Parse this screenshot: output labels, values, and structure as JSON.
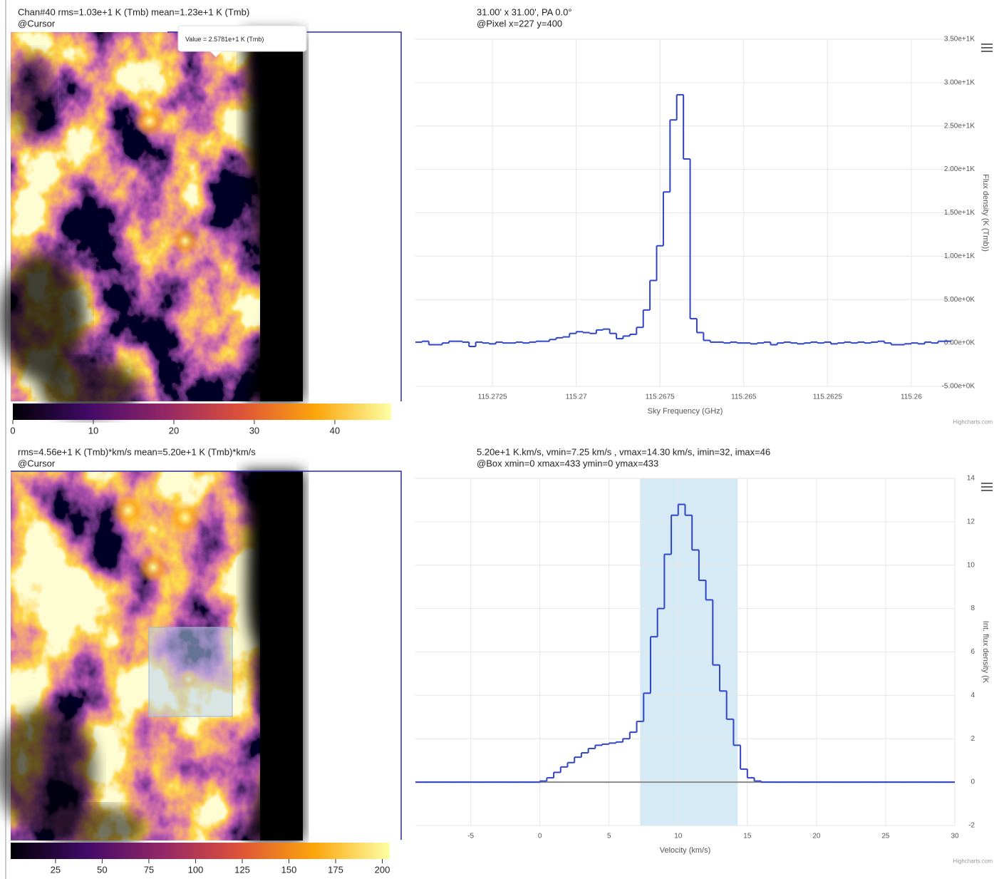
{
  "images": [
    {
      "caption": "Chan#40 rms=1.03e+1 K (Tmb) mean=1.23e+1 K (Tmb)",
      "subcaption": "@Cursor",
      "tooltip": "Value = 2.5781e+1 K (Tmb)",
      "colorbar": {
        "clim": [
          0,
          47
        ],
        "ticks": [
          0,
          10,
          20,
          30,
          40
        ]
      }
    },
    {
      "caption": "rms=4.56e+1 K (Tmb)*km/s mean=5.20e+1 K (Tmb)*km/s",
      "subcaption": "@Cursor",
      "colorbar": {
        "clim": [
          1,
          204
        ],
        "ticks": [
          25,
          50,
          75,
          100,
          125,
          150,
          175,
          200
        ]
      }
    }
  ],
  "chart_data": [
    {
      "type": "line",
      "step": true,
      "title": "31.00' x 31.00', PA 0.0°",
      "subtitle": "@Pixel x=227 y=400",
      "x_label": "Sky Frequency (GHz)",
      "y_label": "Flux density (K (Tmb))",
      "credits": "Highcharts.com",
      "grid": true,
      "y_axis_side": "right",
      "xlim": [
        115.2748,
        115.2587
      ],
      "xticks": [
        115.2725,
        115.27,
        115.2675,
        115.265,
        115.2625,
        115.26
      ],
      "ylim": [
        -5,
        35
      ],
      "yticks": [
        {
          "value": 35,
          "label": "3.50e+1K"
        },
        {
          "value": 30,
          "label": "3.00e+1K"
        },
        {
          "value": 25,
          "label": "2.50e+1K"
        },
        {
          "value": 20,
          "label": "2.00e+1K"
        },
        {
          "value": 15,
          "label": "1.50e+1K"
        },
        {
          "value": 10,
          "label": "1.00e+1K"
        },
        {
          "value": 5,
          "label": "5.00e+0K"
        },
        {
          "value": 0,
          "label": "0.00e+0K"
        },
        {
          "value": -5,
          "label": "-5.00e+0K"
        }
      ],
      "x": [
        115.2747,
        115.2745,
        115.2743,
        115.2741,
        115.2739,
        115.2737,
        115.2735,
        115.2733,
        115.2731,
        115.2729,
        115.2727,
        115.2725,
        115.2723,
        115.2721,
        115.2719,
        115.2717,
        115.2715,
        115.2713,
        115.2711,
        115.2709,
        115.2707,
        115.2705,
        115.2703,
        115.2701,
        115.2699,
        115.2697,
        115.2695,
        115.2693,
        115.2691,
        115.2689,
        115.2687,
        115.2685,
        115.2683,
        115.2681,
        115.2679,
        115.2677,
        115.2675,
        115.2673,
        115.2671,
        115.2669,
        115.2667,
        115.2665,
        115.2663,
        115.2661,
        115.2659,
        115.2657,
        115.2655,
        115.2653,
        115.2651,
        115.2649,
        115.2647,
        115.2645,
        115.2643,
        115.2641,
        115.2639,
        115.2637,
        115.2635,
        115.2633,
        115.2631,
        115.2629,
        115.2627,
        115.2625,
        115.2623,
        115.2621,
        115.2619,
        115.2617,
        115.2615,
        115.2613,
        115.2611,
        115.2609,
        115.2607,
        115.2605,
        115.2603,
        115.2601,
        115.2599,
        115.2597,
        115.2595,
        115.2593,
        115.2591,
        115.2589
      ],
      "series": [
        {
          "color": "#2f45c6",
          "values": [
            0.1,
            0.2,
            -0.2,
            -0.2,
            0.0,
            0.2,
            0.2,
            0.1,
            -0.4,
            0.1,
            0.0,
            -0.1,
            0.1,
            0.0,
            0.0,
            0.1,
            0.0,
            0.1,
            0.2,
            0.2,
            0.4,
            0.6,
            0.7,
            1.1,
            1.3,
            1.2,
            1.1,
            1.5,
            1.6,
            1.1,
            0.5,
            0.8,
            1.0,
            1.8,
            3.8,
            7.2,
            11.2,
            17.4,
            25.7,
            28.6,
            21.2,
            2.8,
            1.2,
            0.3,
            0.1,
            0.1,
            0.0,
            0.1,
            0.0,
            0.0,
            -0.1,
            0.0,
            0.1,
            -0.2,
            0.0,
            0.1,
            0.0,
            -0.1,
            0.0,
            0.1,
            0.0,
            0.1,
            -0.1,
            0.0,
            0.1,
            0.0,
            0.1,
            0.0,
            0.1,
            0.2,
            0.0,
            -0.2,
            -0.2,
            -0.1,
            0.0,
            -0.1,
            0.1,
            0.0,
            0.2,
            0.2
          ]
        }
      ]
    },
    {
      "type": "line",
      "step": true,
      "title": "5.20e+1 K.km/s, vmin=7.25 km/s , vmax=14.30 km/s, imin=32, imax=46",
      "subtitle": "@Box xmin=0 xmax=433 ymin=0 ymax=433",
      "x_label": "Velocity (km/s)",
      "y_label": "Int. flux density (K",
      "credits": "Highcharts.com",
      "grid": true,
      "y_axis_side": "right",
      "plot_band": [
        7.25,
        14.3
      ],
      "plot_band_color": "#d6eaf6",
      "zero_line_color": "#8a8a8a",
      "xlim": [
        -9,
        30
      ],
      "xticks": [
        -5,
        0,
        5,
        10,
        15,
        20,
        25,
        30
      ],
      "ylim": [
        -2,
        14
      ],
      "yticks": [
        14,
        12,
        10,
        8,
        6,
        4,
        2,
        0,
        -2
      ],
      "x": [
        -8.75,
        -8.25,
        -7.75,
        -7.25,
        -6.75,
        -6.25,
        -5.75,
        -5.25,
        -4.75,
        -4.25,
        -3.75,
        -3.25,
        -2.75,
        -2.25,
        -1.75,
        -1.25,
        -0.75,
        -0.25,
        0.25,
        0.75,
        1.25,
        1.75,
        2.25,
        2.75,
        3.25,
        3.75,
        4.25,
        4.75,
        5.25,
        5.75,
        6.25,
        6.75,
        7.25,
        7.75,
        8.25,
        8.75,
        9.25,
        9.75,
        10.25,
        10.75,
        11.25,
        11.75,
        12.25,
        12.75,
        13.25,
        13.75,
        14.25,
        14.75,
        15.25,
        15.75,
        16.25,
        16.75,
        17.25,
        17.75,
        18.25,
        18.75,
        19.25,
        19.75,
        20.25,
        20.75,
        21.25,
        21.75,
        22.25,
        22.75,
        23.25,
        23.75,
        24.25,
        24.75,
        25.25,
        25.75,
        26.25,
        26.75,
        27.25,
        27.75,
        28.25,
        28.75,
        29.25,
        29.75
      ],
      "series": [
        {
          "color": "#2f45c6",
          "values": [
            0,
            0,
            0,
            0,
            0,
            0,
            0,
            0,
            0,
            0,
            0,
            0,
            0,
            0,
            0,
            0,
            0,
            0,
            0.05,
            0.2,
            0.45,
            0.7,
            0.9,
            1.15,
            1.35,
            1.55,
            1.7,
            1.75,
            1.8,
            1.85,
            2.0,
            2.3,
            2.8,
            4.1,
            6.7,
            8.0,
            10.5,
            12.3,
            12.8,
            12.3,
            10.7,
            9.3,
            8.4,
            5.4,
            4.2,
            2.9,
            1.7,
            0.6,
            0.2,
            0.05,
            0,
            0,
            0,
            0,
            0,
            0,
            0,
            0,
            0,
            0,
            0,
            0,
            0,
            0,
            0,
            0,
            0,
            0,
            0,
            0,
            0,
            0,
            0,
            0,
            0,
            0,
            0,
            0
          ]
        }
      ]
    }
  ]
}
